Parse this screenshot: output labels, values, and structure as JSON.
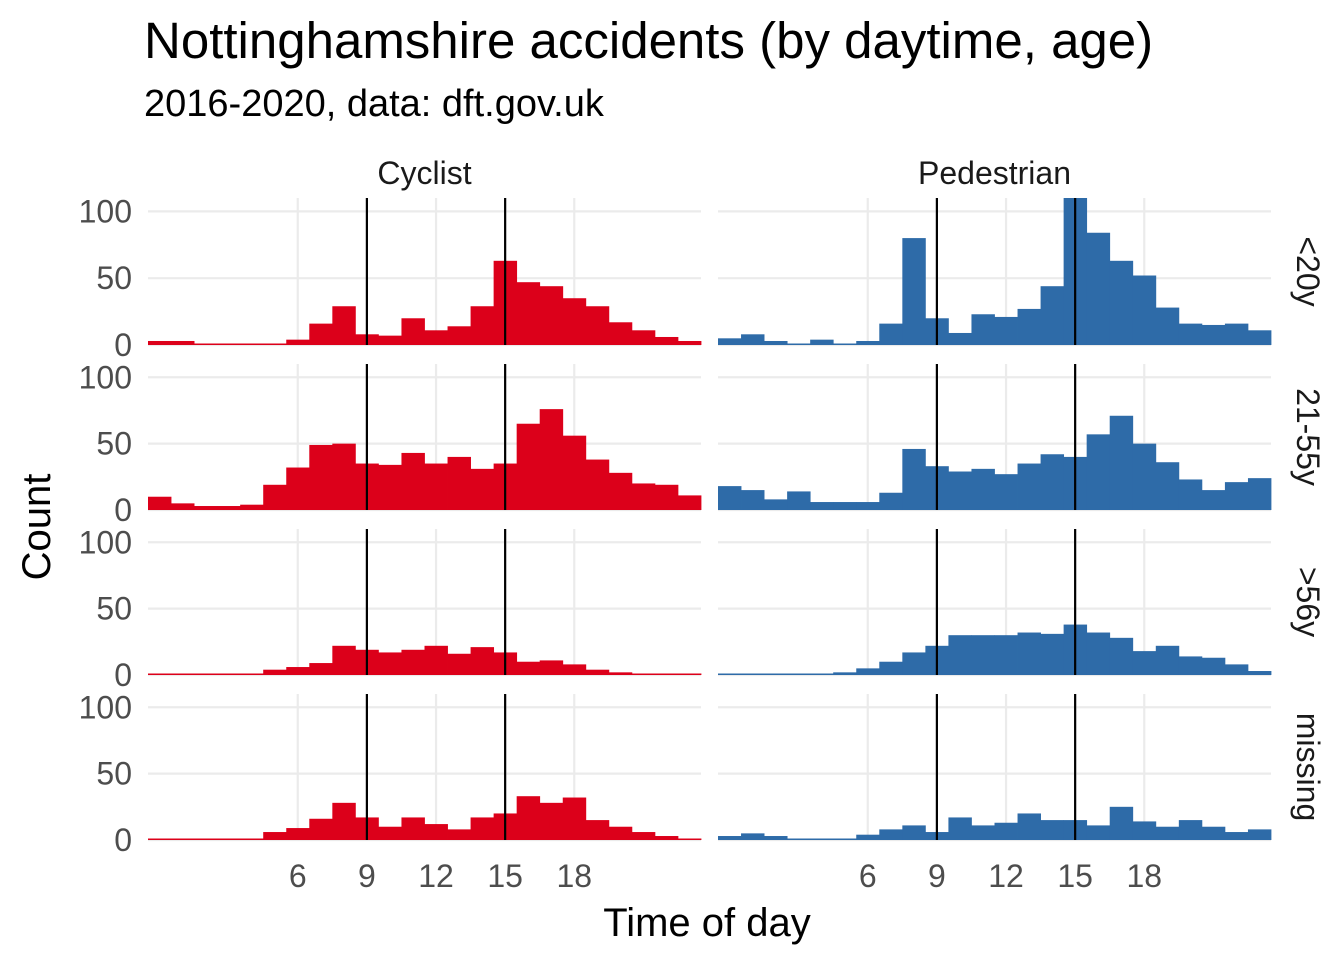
{
  "chart_data": {
    "type": "bar",
    "title": "Nottinghamshire accidents (by daytime, age)",
    "subtitle": "2016-2020, data: dft.gov.uk",
    "xlabel": "Time of day",
    "ylabel": "Count",
    "x": [
      0,
      1,
      2,
      3,
      4,
      5,
      6,
      7,
      8,
      9,
      10,
      11,
      12,
      13,
      14,
      15,
      16,
      17,
      18,
      19,
      20,
      21,
      22,
      23
    ],
    "x_ticks": [
      {
        "value": 6,
        "label": "6"
      },
      {
        "value": 9,
        "label": "9"
      },
      {
        "value": 12,
        "label": "12"
      },
      {
        "value": 15,
        "label": "15"
      },
      {
        "value": 18,
        "label": "18"
      }
    ],
    "y_ticks": [
      {
        "value": 0,
        "label": "0"
      },
      {
        "value": 50,
        "label": "50"
      },
      {
        "value": 100,
        "label": "100"
      }
    ],
    "xlim": [
      -0.5,
      23.5
    ],
    "ylim": [
      0,
      110
    ],
    "reference_lines_x": [
      9,
      15
    ],
    "grid": true,
    "columns": [
      {
        "label": "Cyclist",
        "color": "#DC001A"
      },
      {
        "label": "Pedestrian",
        "color": "#2E6BA8"
      }
    ],
    "rows": [
      {
        "label": "<20y"
      },
      {
        "label": "21-55y"
      },
      {
        "label": ">56y"
      },
      {
        "label": "missing"
      }
    ],
    "panels": [
      {
        "column": "Cyclist",
        "row": "<20y",
        "values": [
          3,
          3,
          0,
          0,
          0,
          1,
          4,
          16,
          29,
          8,
          7,
          20,
          11,
          14,
          29,
          63,
          47,
          44,
          35,
          29,
          17,
          11,
          6,
          3
        ]
      },
      {
        "column": "Pedestrian",
        "row": "<20y",
        "values": [
          5,
          8,
          3,
          1,
          4,
          1,
          3,
          16,
          80,
          20,
          9,
          23,
          21,
          27,
          44,
          110,
          84,
          63,
          52,
          28,
          16,
          15,
          16,
          11
        ]
      },
      {
        "column": "Cyclist",
        "row": "21-55y",
        "values": [
          10,
          5,
          3,
          3,
          4,
          19,
          32,
          49,
          50,
          35,
          34,
          43,
          35,
          40,
          31,
          35,
          65,
          76,
          56,
          38,
          28,
          20,
          19,
          11
        ]
      },
      {
        "column": "Pedestrian",
        "row": "21-55y",
        "values": [
          18,
          15,
          8,
          14,
          6,
          6,
          6,
          13,
          46,
          33,
          29,
          31,
          27,
          35,
          42,
          40,
          57,
          71,
          50,
          36,
          23,
          15,
          21,
          24
        ]
      },
      {
        "column": "Cyclist",
        "row": ">56y",
        "values": [
          0,
          0,
          0,
          0,
          0,
          4,
          6,
          9,
          22,
          19,
          17,
          19,
          22,
          16,
          21,
          17,
          10,
          11,
          8,
          4,
          2,
          1,
          0,
          0
        ]
      },
      {
        "column": "Pedestrian",
        "row": ">56y",
        "values": [
          1,
          1,
          0,
          0,
          0,
          2,
          5,
          10,
          17,
          22,
          30,
          30,
          30,
          32,
          31,
          38,
          32,
          28,
          18,
          22,
          14,
          13,
          8,
          3
        ]
      },
      {
        "column": "Cyclist",
        "row": "missing",
        "values": [
          0,
          1,
          0,
          0,
          1,
          6,
          9,
          16,
          28,
          17,
          10,
          17,
          12,
          8,
          17,
          20,
          33,
          28,
          32,
          15,
          10,
          6,
          3,
          0
        ]
      },
      {
        "column": "Pedestrian",
        "row": "missing",
        "values": [
          3,
          5,
          3,
          1,
          1,
          0,
          4,
          8,
          11,
          6,
          17,
          11,
          13,
          20,
          15,
          15,
          11,
          25,
          14,
          10,
          15,
          10,
          6,
          8
        ]
      }
    ]
  }
}
